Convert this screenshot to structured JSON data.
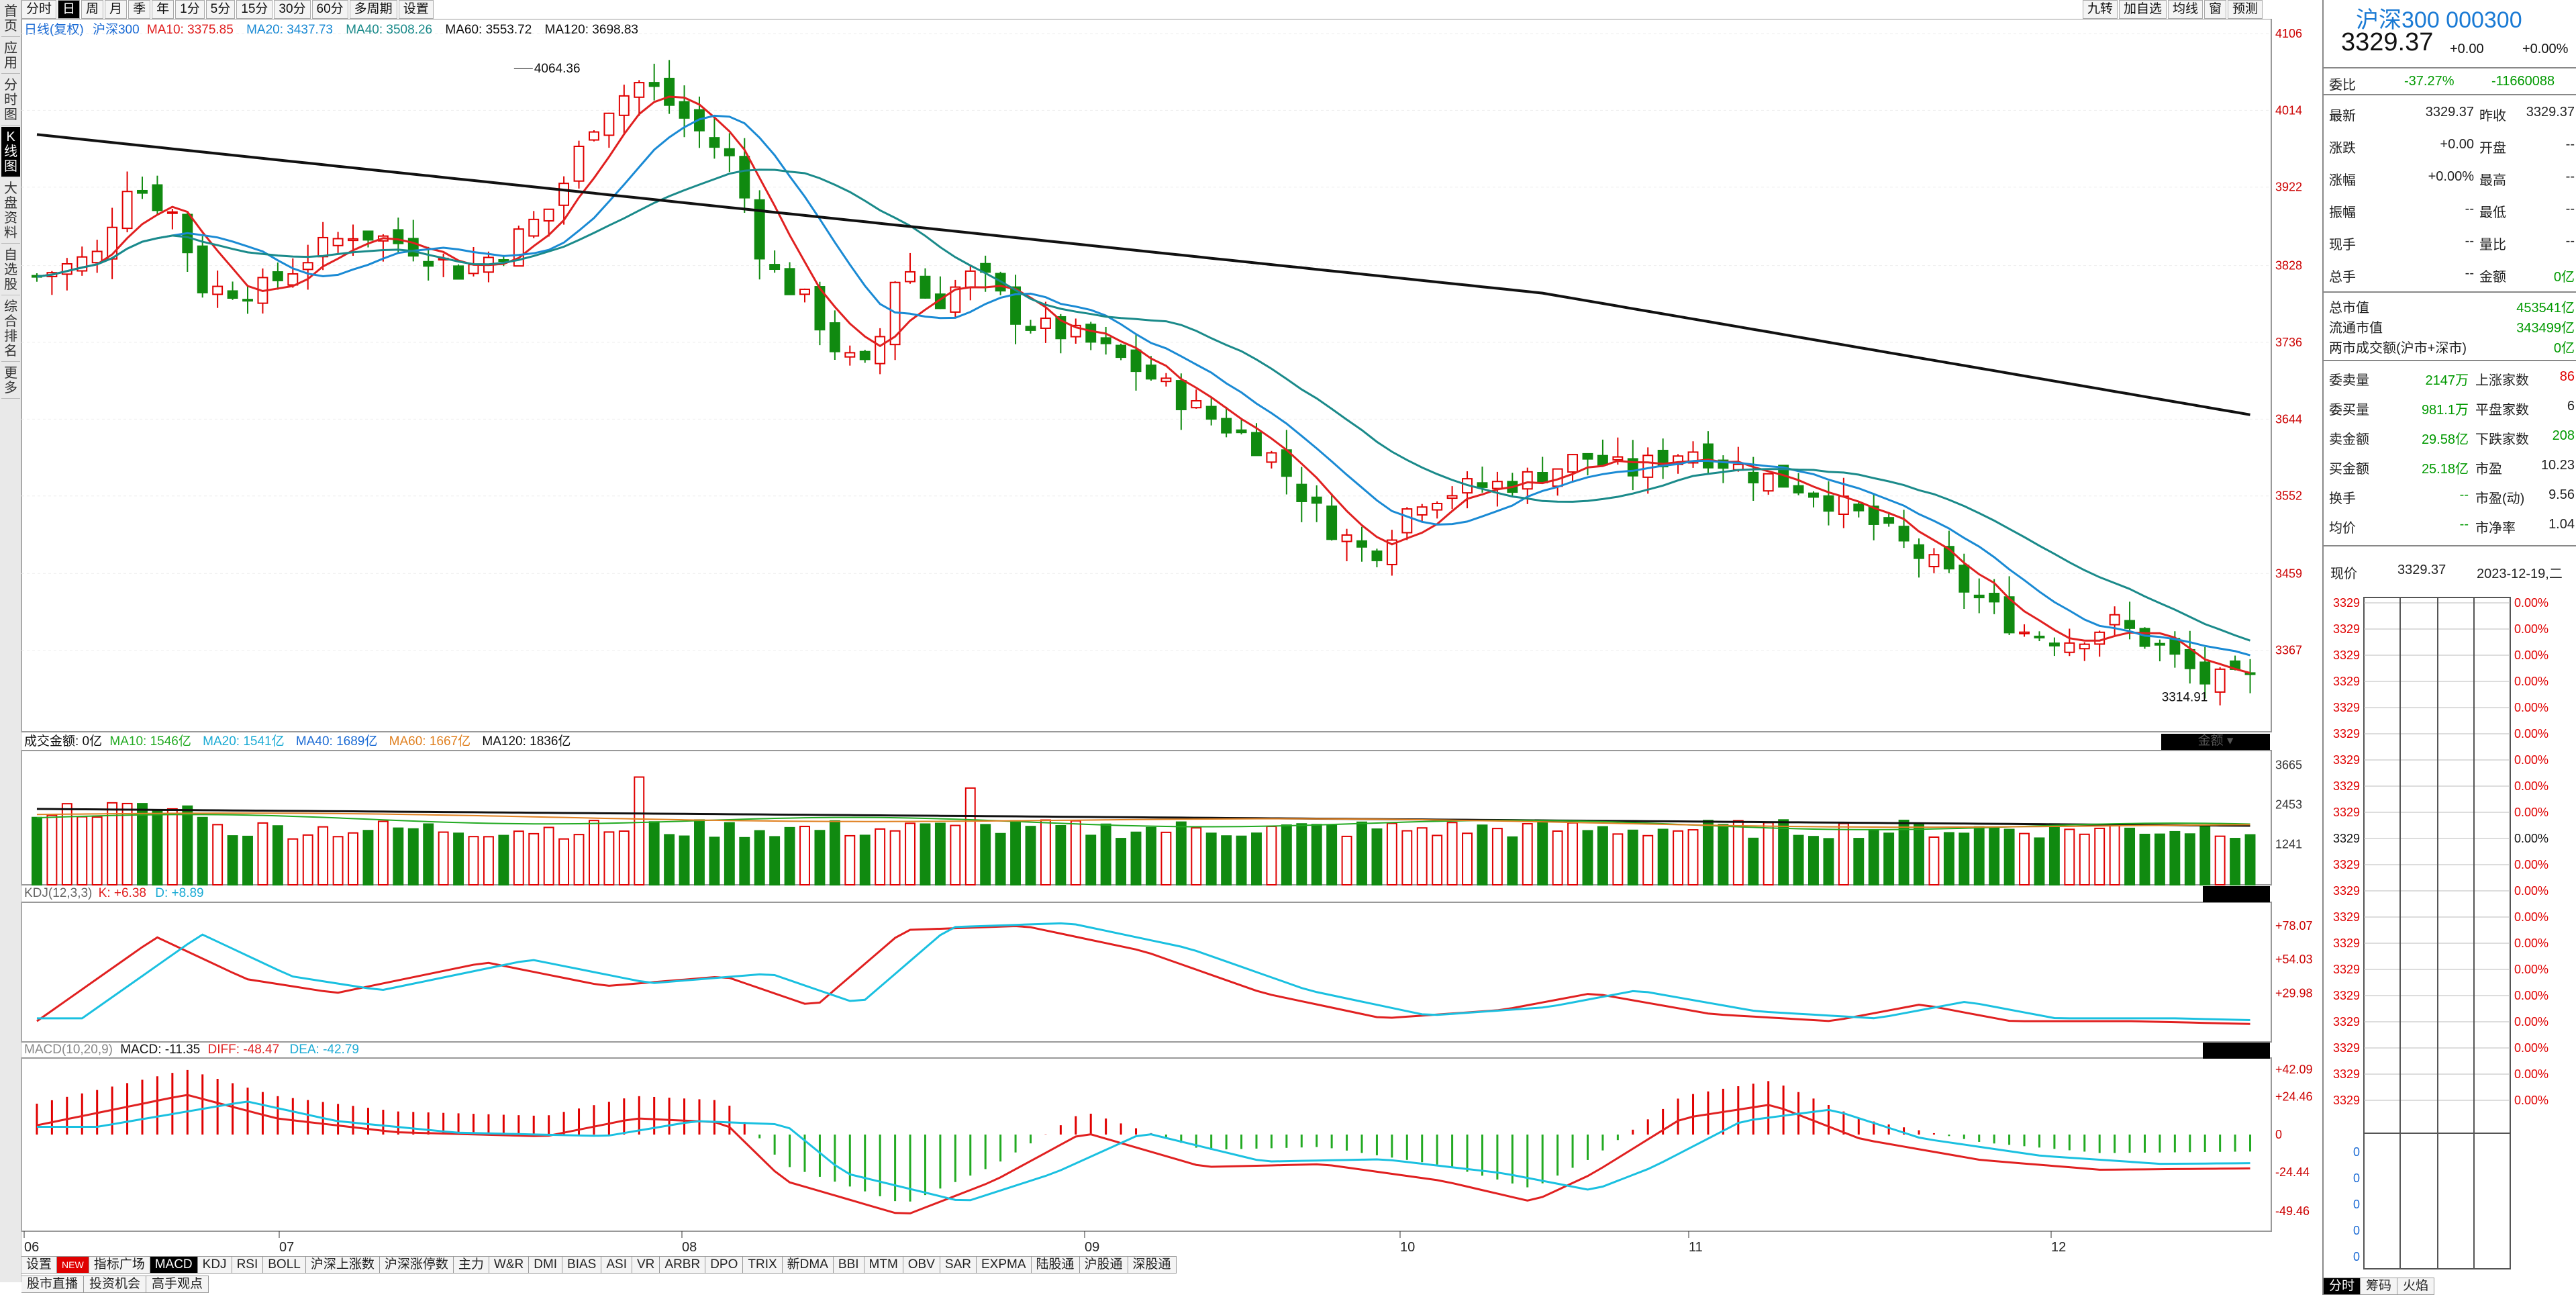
{
  "periods": [
    "分时",
    "日",
    "周",
    "月",
    "季",
    "年",
    "1分",
    "5分",
    "15分",
    "30分",
    "60分",
    "多周期",
    "设置"
  ],
  "active_period": "日",
  "right_tools": [
    "九转",
    "加自选",
    "均线",
    "窗",
    "预测"
  ],
  "left_nav": [
    {
      "label": "首页"
    },
    {
      "label": "应用"
    },
    {
      "label": "分时图"
    },
    {
      "label": "K线图",
      "active": true
    },
    {
      "label": "大盘资料"
    },
    {
      "label": "自选股"
    },
    {
      "label": "综合排名"
    },
    {
      "label": "更多"
    }
  ],
  "ma_legend": {
    "l1": "日线(复权)",
    "l2": "沪深300",
    "l3": "MA10: 3375.85",
    "l4": "MA20: 3437.73",
    "l5": "MA40: 3508.26",
    "l6": "MA60: 3553.72",
    "l7": "MA120: 3698.83"
  },
  "price_axis": [
    "4106",
    "4014",
    "3922",
    "3828",
    "3736",
    "3644",
    "3552",
    "3459",
    "3367"
  ],
  "high_marker": "4064.36",
  "low_marker": "3314.91",
  "vol_legend": {
    "l1": "成交金额: 0亿",
    "l2": "MA10: 1546亿",
    "l3": "MA20: 1541亿",
    "l4": "MA40: 1689亿",
    "l5": "MA60: 1667亿",
    "l6": "MA120: 1836亿",
    "btn": "金额"
  },
  "vol_axis": [
    "3665",
    "2453",
    "1241"
  ],
  "kdj_legend": {
    "l1": "KDJ(12,3,3)",
    "l2": "K: +6.38",
    "l3": "D: +8.89"
  },
  "kdj_axis": [
    "+78.07",
    "+54.03",
    "+29.98"
  ],
  "macd_legend": {
    "l1": "MACD(10,20,9)",
    "l2": "MACD: -11.35",
    "l3": "DIFF: -48.47",
    "l4": "DEA: -42.79"
  },
  "macd_axis": [
    "+42.09",
    "+24.46",
    "0",
    "-24.44",
    "-49.46"
  ],
  "months": [
    "06",
    "07",
    "08",
    "09",
    "10",
    "11",
    "12"
  ],
  "indicator_tabs": [
    "设置",
    "NEW",
    "指标广场",
    "MACD",
    "KDJ",
    "RSI",
    "BOLL",
    "沪深上涨数",
    "沪深涨停数",
    "主力",
    "W&R",
    "DMI",
    "BIAS",
    "ASI",
    "VR",
    "ARBR",
    "DPO",
    "TRIX",
    "新DMA",
    "BBI",
    "MTM",
    "OBV",
    "SAR",
    "EXPMA",
    "陆股通",
    "沪股通",
    "深股通"
  ],
  "active_indicator": "MACD",
  "bottom_tabs": [
    "股市直播",
    "投资机会",
    "高手观点"
  ],
  "quote": {
    "title": "沪深300 000300",
    "price": "3329.37",
    "change": "+0.00",
    "pct": "+0.00%",
    "weibi_label": "委比",
    "weibi": "-37.27%",
    "weicha": "-11660088",
    "rows": [
      [
        "最新",
        "3329.37",
        "昨收",
        "3329.37"
      ],
      [
        "涨跌",
        "+0.00",
        "开盘",
        "--"
      ],
      [
        "涨幅",
        "+0.00%",
        "最高",
        "--"
      ],
      [
        "振幅",
        "--",
        "最低",
        "--"
      ],
      [
        "现手",
        "--",
        "量比",
        "--"
      ],
      [
        "总手",
        "--",
        "金额",
        "0亿"
      ]
    ],
    "mv_rows": [
      [
        "总市值",
        "453541亿"
      ],
      [
        "流通市值",
        "343499亿"
      ],
      [
        "两市成交额(沪市+深市)",
        "0亿"
      ]
    ],
    "stat_rows": [
      [
        "委卖量",
        "2147万",
        "上涨家数",
        "86"
      ],
      [
        "委买量",
        "981.1万",
        "平盘家数",
        "6"
      ],
      [
        "卖金额",
        "29.58亿",
        "下跌家数",
        "208"
      ],
      [
        "买金额",
        "25.18亿",
        "市盈",
        "10.23"
      ],
      [
        "换手",
        "--",
        "市盈(动)",
        "9.56"
      ],
      [
        "均价",
        "--",
        "市净率",
        "1.04"
      ]
    ],
    "now_label": "现价",
    "now_price": "3329.37",
    "date": "2023-12-19,二",
    "mini_left": "3329",
    "mini_right": "0.00%",
    "mini_zero": "0",
    "tabs": [
      "分时",
      "筹码",
      "火焰"
    ]
  },
  "colors": {
    "up": "#e00000",
    "down": "#108a10",
    "ma10": "#e02020",
    "ma20": "#1a8ad4",
    "ma40": "#1a8a8a",
    "ma60": "#111111",
    "ma120": "#111111"
  }
}
